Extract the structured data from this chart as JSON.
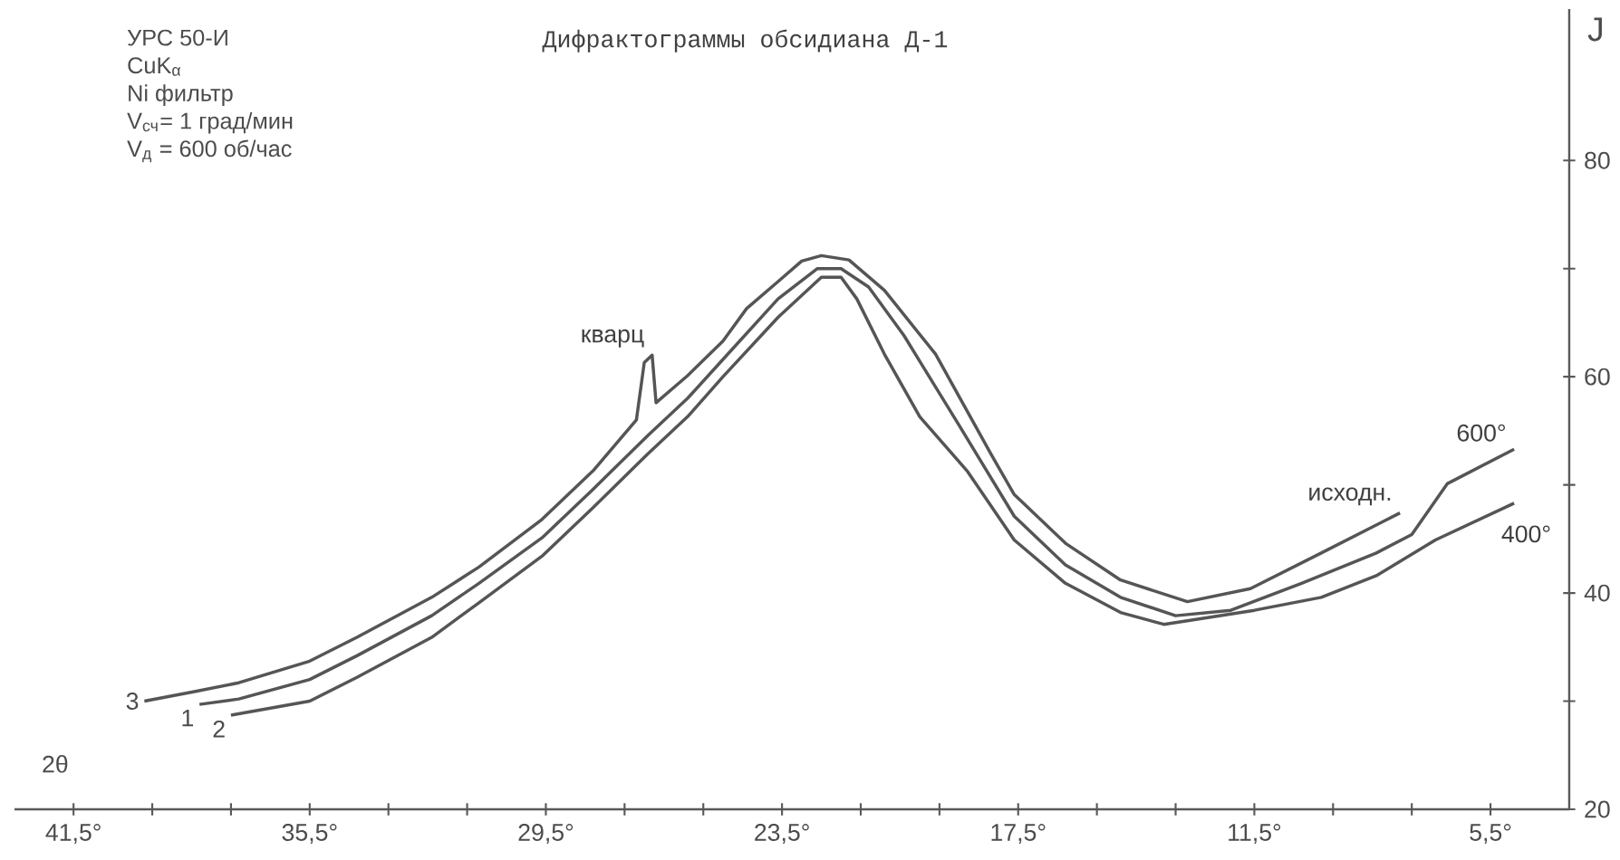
{
  "chart_data": {
    "type": "line",
    "title": "Дифрактограммы обсидиана Д-1",
    "xlabel": "2θ",
    "ylabel": "J",
    "xlim": [
      43,
      3.5
    ],
    "ylim": [
      20,
      94
    ],
    "xticks": [
      {
        "value": 41.5,
        "label": "41,5°"
      },
      {
        "value": 39.5,
        "label": null
      },
      {
        "value": 37.5,
        "label": null
      },
      {
        "value": 35.5,
        "label": "35,5°"
      },
      {
        "value": 33.5,
        "label": null
      },
      {
        "value": 31.5,
        "label": null
      },
      {
        "value": 29.5,
        "label": "29,5°"
      },
      {
        "value": 27.5,
        "label": null
      },
      {
        "value": 25.5,
        "label": null
      },
      {
        "value": 23.5,
        "label": "23,5°"
      },
      {
        "value": 21.5,
        "label": null
      },
      {
        "value": 19.5,
        "label": null
      },
      {
        "value": 17.5,
        "label": "17,5°"
      },
      {
        "value": 15.5,
        "label": null
      },
      {
        "value": 13.5,
        "label": null
      },
      {
        "value": 11.5,
        "label": "11,5°"
      },
      {
        "value": 9.5,
        "label": null
      },
      {
        "value": 7.5,
        "label": null
      },
      {
        "value": 5.5,
        "label": "5,5°"
      }
    ],
    "yticks": [
      20,
      {
        "value": 30,
        "label": null
      },
      40,
      {
        "value": 50,
        "label": null
      },
      60,
      {
        "value": 70,
        "label": null
      },
      80
    ],
    "line_style": "solid",
    "series": [
      {
        "name": "1",
        "color": "#555555",
        "x": [
          38.3,
          37.3,
          35.5,
          34.3,
          32.4,
          31.2,
          29.6,
          28.3,
          26.9,
          25.9,
          25.0,
          23.6,
          22.6,
          22.0,
          21.3,
          20.4,
          19.0,
          17.6,
          16.3,
          14.9,
          13.5,
          12.1,
          10.3,
          8.4,
          7.5,
          6.6,
          4.9
        ],
        "values": [
          29.7,
          30.2,
          32.0,
          34.2,
          37.9,
          40.9,
          45.1,
          49.6,
          54.6,
          58.0,
          61.6,
          67.2,
          70.0,
          70.0,
          68.3,
          63.8,
          55.5,
          47.1,
          42.6,
          39.6,
          37.9,
          38.4,
          40.9,
          43.7,
          45.4,
          50.1,
          53.3
        ]
      },
      {
        "name": "2",
        "color": "#555555",
        "x": [
          37.5,
          35.5,
          34.3,
          32.4,
          31.2,
          29.6,
          28.3,
          26.9,
          25.9,
          25.0,
          23.6,
          22.5,
          22.0,
          21.6,
          20.9,
          20.0,
          18.8,
          17.6,
          16.3,
          14.9,
          13.8,
          11.5,
          9.8,
          8.4,
          6.9,
          4.9
        ],
        "values": [
          28.7,
          30.0,
          32.2,
          35.9,
          39.1,
          43.4,
          47.9,
          52.9,
          56.3,
          60.0,
          65.5,
          69.2,
          69.2,
          67.2,
          62.1,
          56.3,
          51.3,
          44.9,
          40.9,
          38.2,
          37.1,
          38.4,
          39.6,
          41.6,
          44.9,
          48.3
        ]
      },
      {
        "name": "3",
        "color": "#555555",
        "x": [
          39.7,
          38.4,
          37.3,
          35.5,
          34.3,
          32.4,
          31.2,
          29.6,
          28.3,
          27.2,
          27.0,
          26.8,
          26.7,
          25.9,
          25.0,
          24.4,
          23.6,
          23.0,
          22.5,
          21.8,
          20.9,
          19.6,
          18.2,
          17.6,
          16.3,
          14.9,
          13.2,
          11.6,
          9.8,
          7.8
        ],
        "values": [
          30.0,
          30.9,
          31.7,
          33.7,
          35.9,
          39.6,
          42.4,
          46.8,
          51.3,
          56.0,
          61.3,
          62.0,
          57.6,
          60.1,
          63.3,
          66.3,
          68.8,
          70.7,
          71.2,
          70.8,
          68.0,
          62.1,
          52.9,
          49.1,
          44.6,
          41.2,
          39.2,
          40.4,
          43.7,
          47.4
        ]
      }
    ],
    "annotations": [
      "УРС 50-И",
      "CuK$_{α}$",
      "Ni фильтр",
      "V$_{сч}$= 1 град/мин",
      "V$_{д}$ = 600 об/час",
      {
        "text": "кварц",
        "x": 26.8,
        "y": 62.0
      },
      {
        "text": "исходн.",
        "x": 7.8,
        "y": 47.4
      },
      {
        "text": "600°",
        "x": 4.9,
        "y": 53.3
      },
      {
        "text": "400°",
        "x": 4.9,
        "y": 48.3
      }
    ]
  }
}
